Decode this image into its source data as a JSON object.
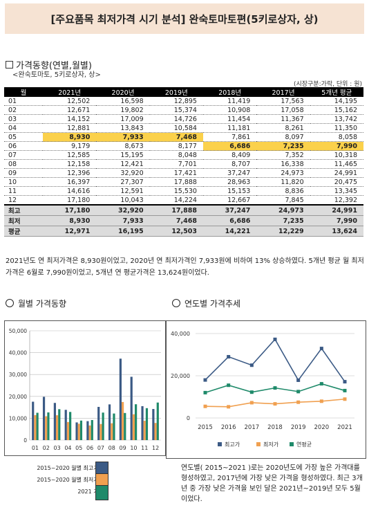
{
  "header": {
    "title": "[주요품목 최저가격 시기 분석] 완숙토마토편(5키로상자, 상)"
  },
  "section1": {
    "title": "가격동향(연별,월별)",
    "subtitle": "<완숙토마토, 5키로상자, 상>",
    "unit": "(시장구분:가락, 단위 : 원)"
  },
  "table": {
    "headers": [
      "월",
      "2021년",
      "2020년",
      "2019년",
      "2018년",
      "2017년",
      "5개년 평균"
    ],
    "rows": [
      [
        "01",
        "12,502",
        "16,598",
        "12,895",
        "11,419",
        "17,563",
        "14,195"
      ],
      [
        "02",
        "12,671",
        "19,802",
        "15,374",
        "10,908",
        "17,058",
        "15,162"
      ],
      [
        "03",
        "14,152",
        "17,009",
        "14,726",
        "11,454",
        "11,367",
        "13,742"
      ],
      [
        "04",
        "12,881",
        "13,843",
        "10,584",
        "11,181",
        "8,261",
        "11,350"
      ],
      [
        "05",
        "8,930",
        "7,933",
        "7,468",
        "7,861",
        "8,097",
        "8,058"
      ],
      [
        "06",
        "9,179",
        "8,673",
        "8,177",
        "6,686",
        "7,235",
        "7,990"
      ],
      [
        "07",
        "12,585",
        "15,195",
        "8,048",
        "8,409",
        "7,352",
        "10,318"
      ],
      [
        "08",
        "12,158",
        "12,421",
        "7,701",
        "8,707",
        "16,338",
        "11,465"
      ],
      [
        "09",
        "12,396",
        "32,920",
        "17,421",
        "37,247",
        "24,973",
        "24,991"
      ],
      [
        "10",
        "16,397",
        "27,307",
        "17,888",
        "28,963",
        "11,820",
        "20,475"
      ],
      [
        "11",
        "14,616",
        "12,591",
        "15,530",
        "15,153",
        "8,836",
        "13,345"
      ],
      [
        "12",
        "17,180",
        "10,043",
        "14,224",
        "12,667",
        "7,845",
        "12,392"
      ]
    ],
    "summary": [
      [
        "최고",
        "17,180",
        "32,920",
        "17,888",
        "37,247",
        "24,973",
        "24,991"
      ],
      [
        "최저",
        "8,930",
        "7,933",
        "7,468",
        "6,686",
        "7,235",
        "7,990"
      ],
      [
        "평균",
        "12,971",
        "16,195",
        "12,503",
        "14,221",
        "12,229",
        "13,624"
      ]
    ]
  },
  "analysis": "2021년도 연 최저가격은 8,930원이었고, 2020년 연 최저가격인 7,933원에 비하여 13% 상승하였다. 5개년 평균 월 최저가격은 6월로 7,990원이었고, 5개년 연 평균가격은 13,624원이었다.",
  "monthly": {
    "title": "월별 가격동향"
  },
  "yearly": {
    "title": "연도별 가격추세"
  },
  "chart_data": [
    {
      "type": "bar",
      "categories": [
        "01",
        "02",
        "03",
        "04",
        "05",
        "06",
        "07",
        "08",
        "09",
        "10",
        "11",
        "12"
      ],
      "ylim": [
        0,
        50000
      ],
      "yticks": [
        "0",
        "10,000",
        "20,000",
        "30,000",
        "40,000",
        "50,000"
      ],
      "series": [
        {
          "name": "2015~2020 월별 최고가격",
          "color": "#3b5a85",
          "values": [
            17563,
            19802,
            17009,
            13843,
            8097,
            8673,
            15195,
            16338,
            37247,
            28963,
            15530,
            14224
          ]
        },
        {
          "name": "2015~2020 월별 최저가격",
          "color": "#f0a050",
          "values": [
            11419,
            10908,
            11367,
            8261,
            7468,
            6686,
            7352,
            7701,
            17421,
            11820,
            8836,
            7845
          ]
        },
        {
          "name": "2021 가격",
          "color": "#1f8a6a",
          "values": [
            12502,
            12671,
            14152,
            12881,
            8930,
            9179,
            12585,
            12158,
            12396,
            16397,
            14616,
            17180
          ]
        }
      ]
    },
    {
      "type": "line",
      "x": [
        "2015",
        "2016",
        "2017",
        "2018",
        "2019",
        "2020",
        "2021"
      ],
      "ylim": [
        0,
        40000
      ],
      "yticks": [
        "0",
        "20,000",
        "40,000"
      ],
      "series": [
        {
          "name": "최고가",
          "color": "#3b5a85",
          "values": [
            18000,
            29000,
            25000,
            37247,
            17888,
            32920,
            17180
          ]
        },
        {
          "name": "최저가",
          "color": "#f0a050",
          "values": [
            5500,
            5300,
            7235,
            6686,
            7468,
            7933,
            8930
          ]
        },
        {
          "name": "연평균",
          "color": "#1f8a6a",
          "values": [
            12000,
            15500,
            12229,
            14221,
            12503,
            16195,
            12971
          ]
        }
      ]
    }
  ],
  "note": "연도별( 2015~2021 )로는 2020년도에 가장 높은 가격대를 형성하였고, 2017년에 가장 낮은 가격을 형성하였다. 최근 3개년 중 가장 낮은 가격을 보인 달은 2021년~2019년 모두 5월이었다."
}
